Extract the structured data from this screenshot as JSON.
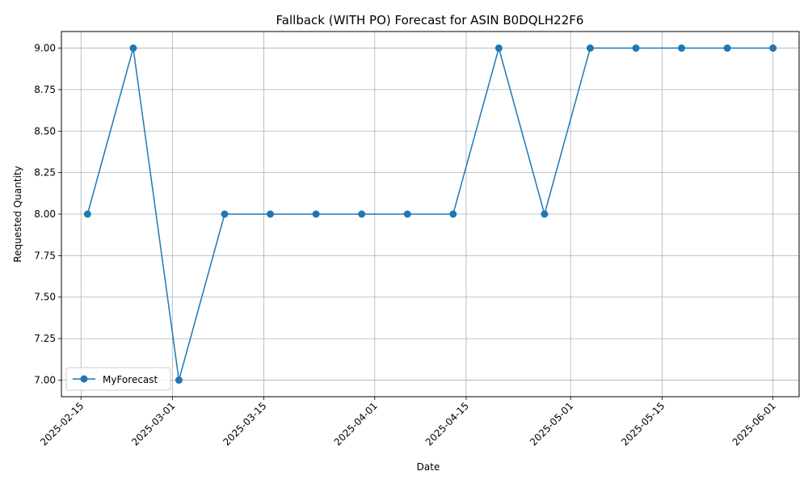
{
  "chart_data": {
    "type": "line",
    "title": "Fallback (WITH PO) Forecast for ASIN B0DQLH22F6",
    "xlabel": "Date",
    "ylabel": "Requested Quantity",
    "x": [
      "2025-02-16",
      "2025-02-23",
      "2025-03-02",
      "2025-03-09",
      "2025-03-16",
      "2025-03-23",
      "2025-03-30",
      "2025-04-06",
      "2025-04-13",
      "2025-04-20",
      "2025-04-27",
      "2025-05-04",
      "2025-05-11",
      "2025-05-18",
      "2025-05-25",
      "2025-06-01"
    ],
    "series": [
      {
        "name": "MyForecast",
        "color": "#1f77b4",
        "marker": "circle",
        "values": [
          8,
          9,
          7,
          8,
          8,
          8,
          8,
          8,
          8,
          9,
          8,
          9,
          9,
          9,
          9,
          9
        ]
      }
    ],
    "x_ticks": [
      "2025-02-15",
      "2025-03-01",
      "2025-03-15",
      "2025-04-01",
      "2025-04-15",
      "2025-05-01",
      "2025-05-15",
      "2025-06-01"
    ],
    "y_ticks": [
      "7.00",
      "7.25",
      "7.50",
      "7.75",
      "8.00",
      "8.25",
      "8.50",
      "8.75",
      "9.00"
    ],
    "xlim": [
      "2025-02-12",
      "2025-06-05"
    ],
    "ylim": [
      6.9,
      9.1
    ],
    "grid": true,
    "legend_position": "lower-left"
  }
}
